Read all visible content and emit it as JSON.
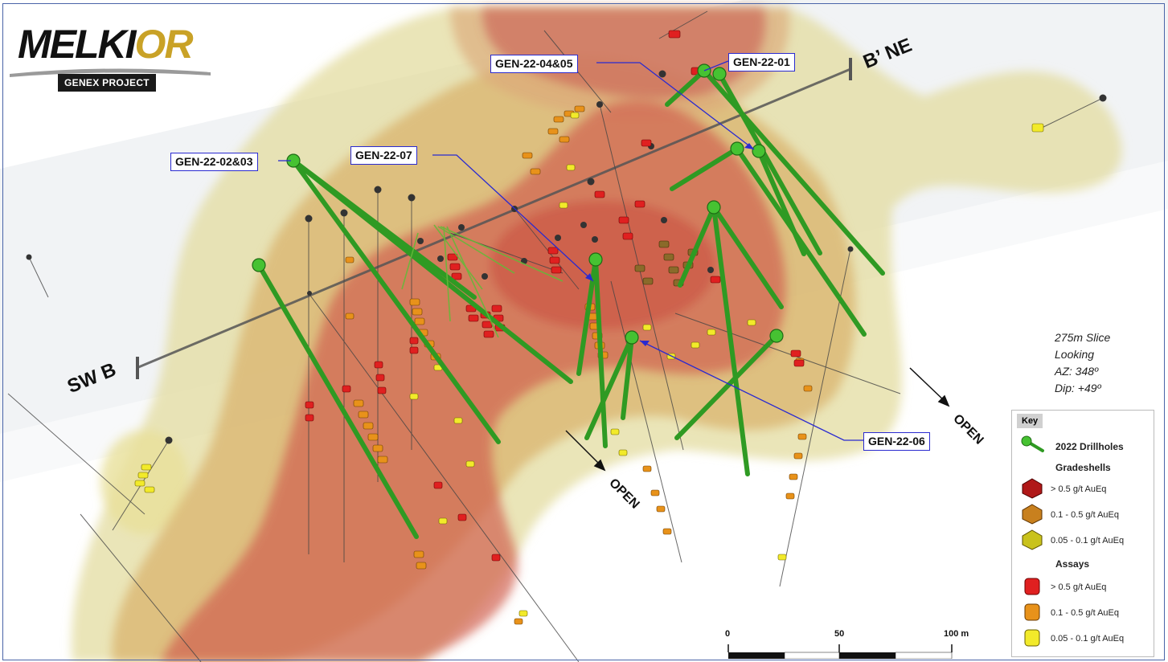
{
  "logo": {
    "brand_part1": "MELKI",
    "brand_part2": "OR",
    "project": "GENEX PROJECT"
  },
  "section": {
    "start_label": "SW B",
    "end_label": "B’ NE"
  },
  "callouts": [
    {
      "id": "gen-22-04-05",
      "label": "GEN-22-04&05"
    },
    {
      "id": "gen-22-01",
      "label": "GEN-22-01"
    },
    {
      "id": "gen-22-02-03",
      "label": "GEN-22-02&03"
    },
    {
      "id": "gen-22-07",
      "label": "GEN-22-07"
    },
    {
      "id": "gen-22-06",
      "label": "GEN-22-06"
    }
  ],
  "open_labels": [
    "OPEN",
    "OPEN"
  ],
  "slice_info": {
    "line1": "275m Slice",
    "line2": "Looking",
    "line3": "AZ: 348º",
    "line4": "Dip: +49º"
  },
  "legend": {
    "key_title": "Key",
    "drillholes": "2022 Drillholes",
    "gradeshells_header": "Gradeshells",
    "gradeshells": [
      {
        "label": "> 0.5 g/t AuEq",
        "color": "#b01818"
      },
      {
        "label": "0.1 - 0.5 g/t AuEq",
        "color": "#c8801e"
      },
      {
        "label": "0.05 - 0.1 g/t AuEq",
        "color": "#c9c21c"
      }
    ],
    "assays_header": "Assays",
    "assays": [
      {
        "label": "> 0.5 g/t AuEq",
        "color": "#e02020"
      },
      {
        "label": "0.1 - 0.5 g/t AuEq",
        "color": "#e8921a"
      },
      {
        "label": "0.05 - 0.1 g/t AuEq",
        "color": "#f2ea2a"
      }
    ]
  },
  "scale_bar": {
    "ticks": [
      "0",
      "50",
      "100 m"
    ]
  },
  "colors": {
    "drillhole": "#2f9a23",
    "callout_border": "#2a2ad0",
    "high_grade": "#c82a2a",
    "mid_grade": "#d89a3a",
    "low_grade": "#d9cf86"
  }
}
